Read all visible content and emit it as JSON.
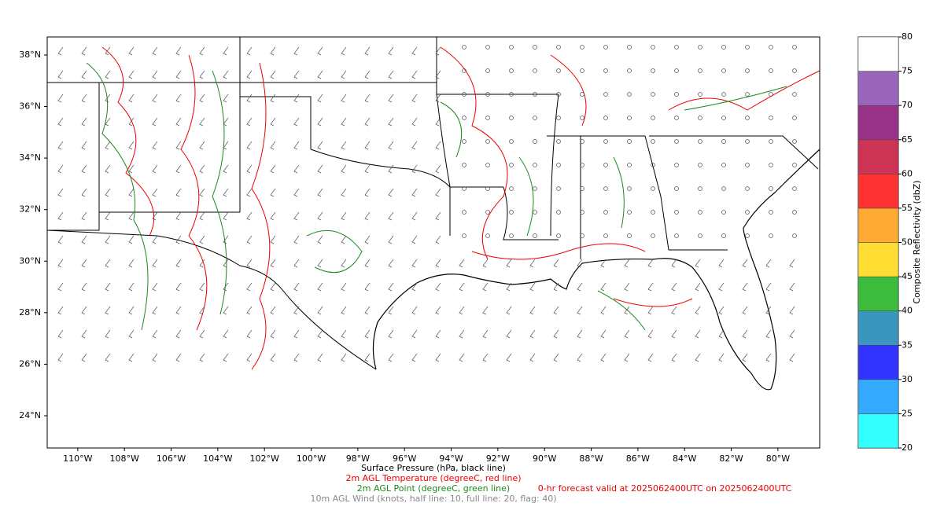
{
  "map": {
    "xlim": [
      -111.31,
      -78.21
    ],
    "ylim": [
      22.75,
      38.7
    ],
    "xticks": [
      {
        "value": -110,
        "label": "110°W"
      },
      {
        "value": -108,
        "label": "108°W"
      },
      {
        "value": -106,
        "label": "106°W"
      },
      {
        "value": -104,
        "label": "104°W"
      },
      {
        "value": -102,
        "label": "102°W"
      },
      {
        "value": -100,
        "label": "100°W"
      },
      {
        "value": -98,
        "label": "98°W"
      },
      {
        "value": -96,
        "label": "96°W"
      },
      {
        "value": -94,
        "label": "94°W"
      },
      {
        "value": -92,
        "label": "92°W"
      },
      {
        "value": -90,
        "label": "90°W"
      },
      {
        "value": -88,
        "label": "88°W"
      },
      {
        "value": -86,
        "label": "86°W"
      },
      {
        "value": -84,
        "label": "84°W"
      },
      {
        "value": -82,
        "label": "82°W"
      },
      {
        "value": -80,
        "label": "80°W"
      }
    ],
    "yticks": [
      {
        "value": 24,
        "label": "24°N"
      },
      {
        "value": 26,
        "label": "26°N"
      },
      {
        "value": 28,
        "label": "28°N"
      },
      {
        "value": 30,
        "label": "30°N"
      },
      {
        "value": 32,
        "label": "32°N"
      },
      {
        "value": 34,
        "label": "34°N"
      },
      {
        "value": 36,
        "label": "36°N"
      },
      {
        "value": 38,
        "label": "38°N"
      }
    ]
  },
  "colorbar": {
    "label": "Composite Reflectivity (dbZ)",
    "lim": [
      20,
      80
    ],
    "ticks": [
      20,
      25,
      30,
      35,
      40,
      45,
      50,
      55,
      60,
      65,
      70,
      75,
      80
    ],
    "colors": [
      "#33ffff",
      "#33aaff",
      "#3333ff",
      "#3a96bd",
      "#3cbb3c",
      "#ffdd33",
      "#ffaa33",
      "#ff3333",
      "#cc3355",
      "#993388",
      "#9966bb",
      "#ffffff"
    ]
  },
  "captions": {
    "pressure": "Surface Pressure (hPa, black line)",
    "temperature": "2m AGL Temperature (degreeC, red line)",
    "dewpoint": "2m AGL Point (degreeC, green line)",
    "wind": "10m AGL Wind (knots, half line: 10, full line: 20, flag: 40)",
    "valid": "0-hr forecast valid at 2025062400UTC on 2025062400UTC"
  }
}
